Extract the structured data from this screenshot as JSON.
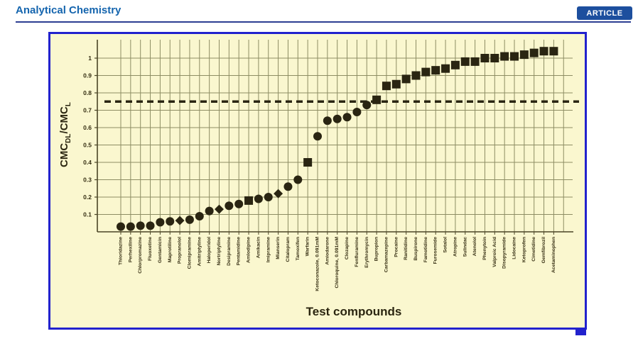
{
  "header": {
    "journal_title": "Analytical Chemistry",
    "article_badge": "ARTICLE"
  },
  "colors": {
    "header_title": "#1565ae",
    "header_rule": "#2c3e92",
    "badge_bg": "#1d4f9e",
    "figure_border": "#2222cd",
    "figure_bg": "#faf7cf",
    "grid": "#8d8d63",
    "axis": "#4b4526",
    "marker": "#2a2512",
    "threshold": "#2a2512",
    "tick_text": "#352e12",
    "title_text": "#2b2610"
  },
  "chart_data": {
    "type": "scatter",
    "title": "",
    "xlabel": "Test compounds",
    "ylabel": "CMC_DL/CMC_L",
    "ylabel_parts": [
      {
        "text": "CMC",
        "sub": false
      },
      {
        "text": "DL",
        "sub": true
      },
      {
        "text": "/CMC",
        "sub": false
      },
      {
        "text": "L",
        "sub": true
      }
    ],
    "ylim": [
      0,
      1.1
    ],
    "yticks": [
      "0.1",
      "0.2",
      "0.3",
      "0.4",
      "0.5",
      "0.6",
      "0.7",
      "0.8",
      "0.9",
      "1"
    ],
    "grid": true,
    "legend": null,
    "reference_line_y": 0.75,
    "reference_line_style": "dashed",
    "points": [
      {
        "label": "Thioridazine",
        "value": 0.03,
        "marker": "circle"
      },
      {
        "label": "Perhexiline",
        "value": 0.03,
        "marker": "circle"
      },
      {
        "label": "Chlorpromazine",
        "value": 0.035,
        "marker": "circle"
      },
      {
        "label": "Fluoxetine",
        "value": 0.035,
        "marker": "circle"
      },
      {
        "label": "Gentamicin",
        "value": 0.055,
        "marker": "circle"
      },
      {
        "label": "Maprotiline",
        "value": 0.06,
        "marker": "circle"
      },
      {
        "label": "Propranolol",
        "value": 0.065,
        "marker": "diamond"
      },
      {
        "label": "Clomipramine",
        "value": 0.07,
        "marker": "circle"
      },
      {
        "label": "Amitriptyline",
        "value": 0.09,
        "marker": "circle"
      },
      {
        "label": "Haloperidol",
        "value": 0.12,
        "marker": "circle"
      },
      {
        "label": "Nortriptyline",
        "value": 0.13,
        "marker": "diamond"
      },
      {
        "label": "Desipramine",
        "value": 0.15,
        "marker": "circle"
      },
      {
        "label": "Pentamidine",
        "value": 0.16,
        "marker": "circle"
      },
      {
        "label": "Amlodipine",
        "value": 0.18,
        "marker": "square"
      },
      {
        "label": "Amikacin",
        "value": 0.19,
        "marker": "circle"
      },
      {
        "label": "Imipramine",
        "value": 0.2,
        "marker": "circle"
      },
      {
        "label": "Mianserin",
        "value": 0.22,
        "marker": "diamond"
      },
      {
        "label": "Citalopram",
        "value": 0.26,
        "marker": "circle"
      },
      {
        "label": "Tamoxifen",
        "value": 0.3,
        "marker": "circle"
      },
      {
        "label": "Warfarin",
        "value": 0.4,
        "marker": "square"
      },
      {
        "label": "Ketoconazole, 0.091mM",
        "value": 0.55,
        "marker": "circle"
      },
      {
        "label": "Amiodarone",
        "value": 0.64,
        "marker": "circle"
      },
      {
        "label": "Chloroquine, 0.091mM",
        "value": 0.65,
        "marker": "circle"
      },
      {
        "label": "Clozapine",
        "value": 0.66,
        "marker": "circle"
      },
      {
        "label": "Fenfluramine",
        "value": 0.69,
        "marker": "circle"
      },
      {
        "label": "Erythromycin",
        "value": 0.73,
        "marker": "circle"
      },
      {
        "label": "Bupropion",
        "value": 0.76,
        "marker": "square"
      },
      {
        "label": "Carbamazepine",
        "value": 0.84,
        "marker": "square"
      },
      {
        "label": "Procaine",
        "value": 0.85,
        "marker": "square"
      },
      {
        "label": "Ranitidine",
        "value": 0.88,
        "marker": "square"
      },
      {
        "label": "Buspirone",
        "value": 0.9,
        "marker": "square"
      },
      {
        "label": "Famotidine",
        "value": 0.92,
        "marker": "square"
      },
      {
        "label": "Furosemide",
        "value": 0.93,
        "marker": "square"
      },
      {
        "label": "Sotalol",
        "value": 0.94,
        "marker": "square"
      },
      {
        "label": "Atropine",
        "value": 0.96,
        "marker": "square"
      },
      {
        "label": "Sulindac",
        "value": 0.98,
        "marker": "square"
      },
      {
        "label": "Atenolol",
        "value": 0.98,
        "marker": "square"
      },
      {
        "label": "Phenytoin",
        "value": 1.0,
        "marker": "square"
      },
      {
        "label": "Valproic Acid",
        "value": 1.0,
        "marker": "square"
      },
      {
        "label": "Disopyramide",
        "value": 1.01,
        "marker": "square"
      },
      {
        "label": "Lidocaine",
        "value": 1.01,
        "marker": "square"
      },
      {
        "label": "Ketoprofen",
        "value": 1.02,
        "marker": "square"
      },
      {
        "label": "Cimetidine",
        "value": 1.03,
        "marker": "square"
      },
      {
        "label": "Gemfibrozil",
        "value": 1.04,
        "marker": "square"
      },
      {
        "label": "Acetaminophen",
        "value": 1.04,
        "marker": "square"
      }
    ]
  }
}
